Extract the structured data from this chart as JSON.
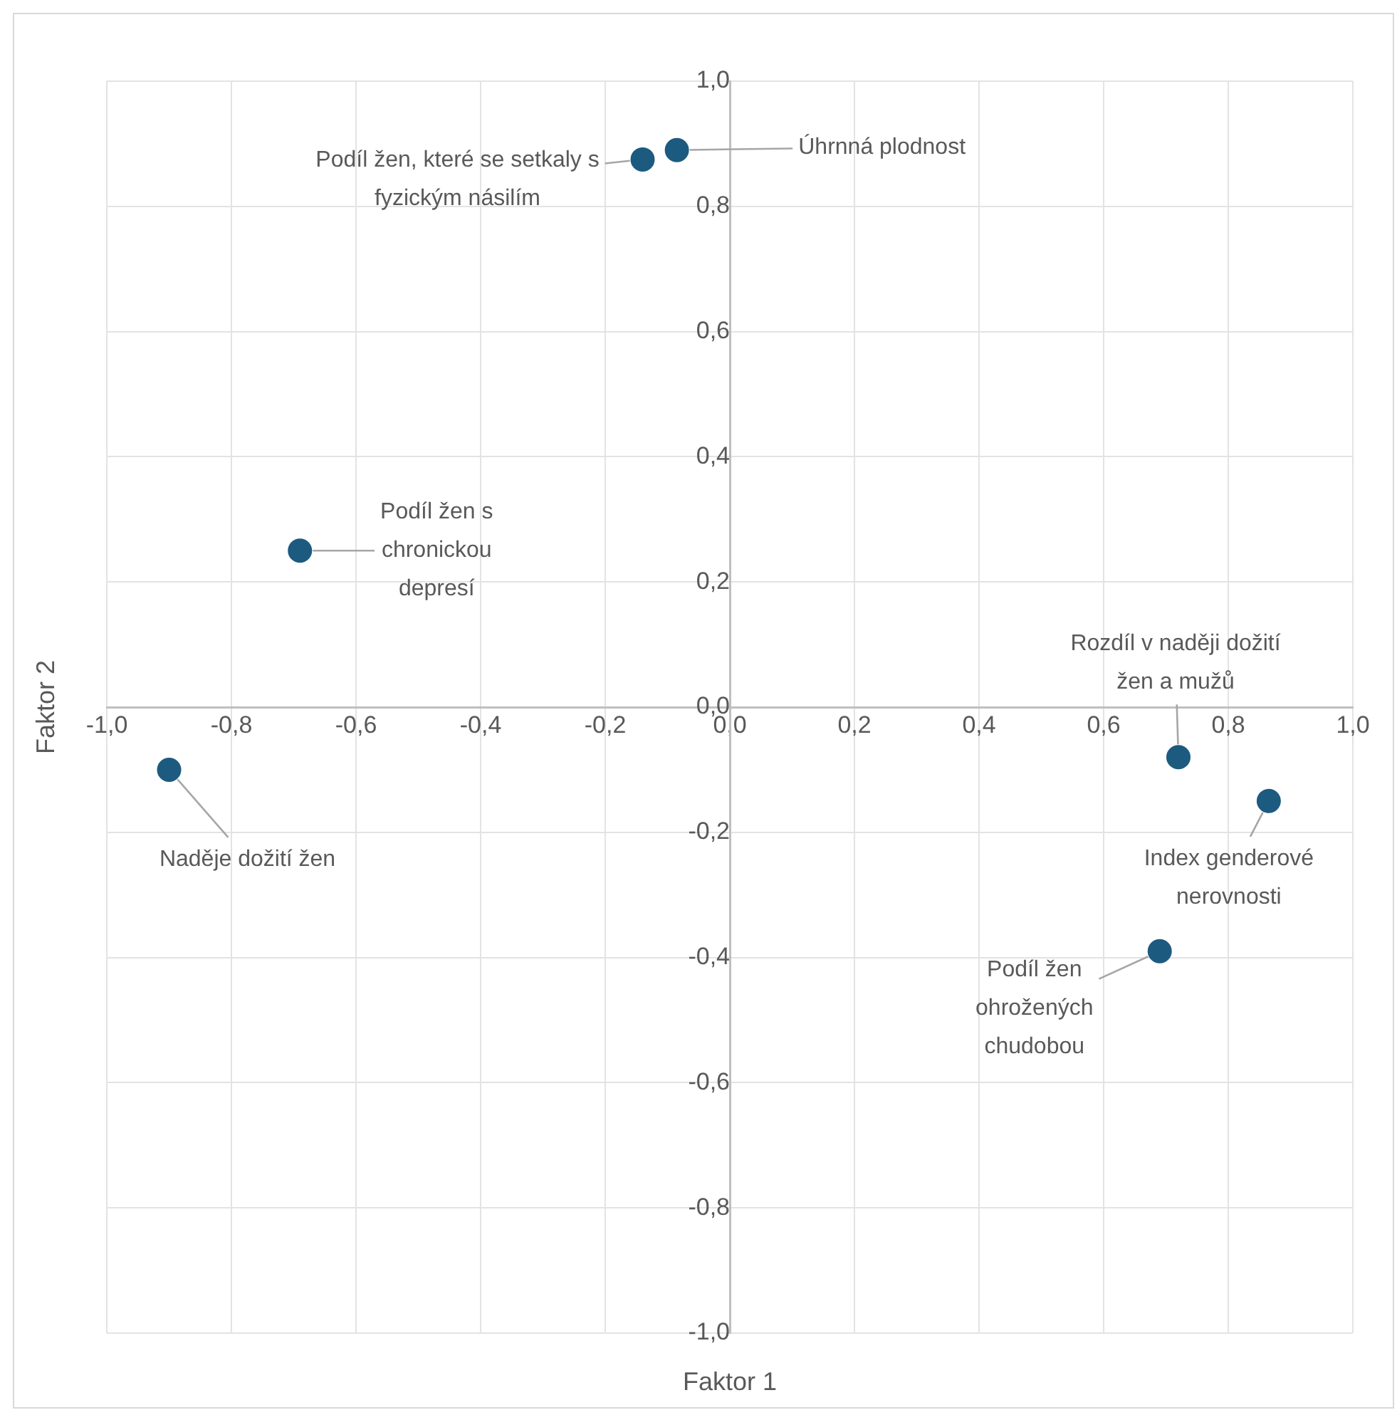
{
  "chart_data": {
    "type": "scatter",
    "xlabel": "Faktor 1",
    "ylabel": "Faktor 2",
    "xlim": [
      -1,
      1
    ],
    "ylim": [
      -1,
      1
    ],
    "xticks": [
      {
        "value": -1,
        "label": "-1,0"
      },
      {
        "value": -0.8,
        "label": "-0,8"
      },
      {
        "value": -0.6,
        "label": "-0,6"
      },
      {
        "value": -0.4,
        "label": "-0,4"
      },
      {
        "value": -0.2,
        "label": "-0,2"
      },
      {
        "value": 0,
        "label": "0,0"
      },
      {
        "value": 0.2,
        "label": "0,2"
      },
      {
        "value": 0.4,
        "label": "0,4"
      },
      {
        "value": 0.6,
        "label": "0,6"
      },
      {
        "value": 0.8,
        "label": "0,8"
      },
      {
        "value": 1,
        "label": "1,0"
      }
    ],
    "yticks": [
      {
        "value": -1,
        "label": "-1,0"
      },
      {
        "value": -0.8,
        "label": "-0,8"
      },
      {
        "value": -0.6,
        "label": "-0,6"
      },
      {
        "value": -0.4,
        "label": "-0,4"
      },
      {
        "value": -0.2,
        "label": "-0,2"
      },
      {
        "value": 0,
        "label": "0,0"
      },
      {
        "value": 0.2,
        "label": "0,2"
      },
      {
        "value": 0.4,
        "label": "0,4"
      },
      {
        "value": 0.6,
        "label": "0,6"
      },
      {
        "value": 0.8,
        "label": "0,8"
      },
      {
        "value": 1,
        "label": "1,0"
      }
    ],
    "series": [
      {
        "color": "#1d5a80",
        "x": [
          -0.14,
          -0.085,
          -0.69,
          -0.9,
          0.72,
          0.865,
          0.69
        ],
        "values": [
          0.875,
          0.89,
          0.25,
          -0.1,
          -0.08,
          -0.15,
          -0.39
        ]
      }
    ],
    "annotations": [
      {
        "text": "Podíl žen, které se setkaly s fyzickým násilím",
        "x": -0.14,
        "y": 0.875
      },
      {
        "text": "Úhrnná plodnost",
        "x": -0.085,
        "y": 0.89
      },
      {
        "text": "Podíl žen s chronickou depresí",
        "x": -0.69,
        "y": 0.25
      },
      {
        "text": "Naděje dožití žen",
        "x": -0.9,
        "y": -0.1
      },
      {
        "text": "Rozdíl v naději dožití žen a mužů",
        "x": 0.72,
        "y": -0.08
      },
      {
        "text": "Index genderové nerovnosti",
        "x": 0.865,
        "y": -0.15
      },
      {
        "text": "Podíl žen ohrožených chudobou",
        "x": 0.69,
        "y": -0.39
      }
    ],
    "grid": true,
    "legend": false,
    "marker": "circle"
  }
}
